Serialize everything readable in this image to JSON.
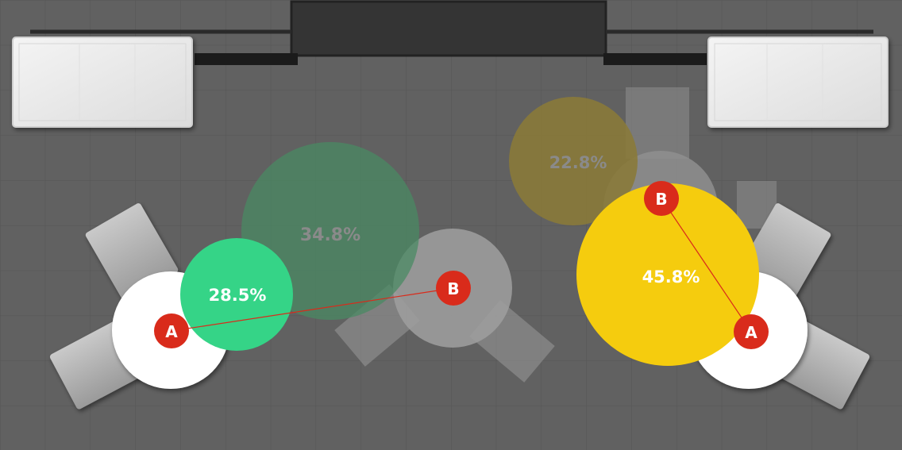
{
  "colors": {
    "floor": "#616161",
    "green": "#35d487",
    "green_faded": "#4a8a63",
    "yellow": "#f5cc0e",
    "yellow_faded": "#8a7a3a",
    "marker": "#d92b1b",
    "connector": "#d92b1b"
  },
  "bubbles": {
    "left_current": {
      "label": "28.5%",
      "value": 28.5
    },
    "left_ghost": {
      "label": "34.8%",
      "value": 34.8
    },
    "right_current": {
      "label": "45.8%",
      "value": 45.8
    },
    "right_ghost": {
      "label": "22.8%",
      "value": 22.8
    }
  },
  "markers": {
    "left_a": {
      "label": "A"
    },
    "left_b": {
      "label": "B"
    },
    "right_a": {
      "label": "A"
    },
    "right_b": {
      "label": "B"
    }
  }
}
